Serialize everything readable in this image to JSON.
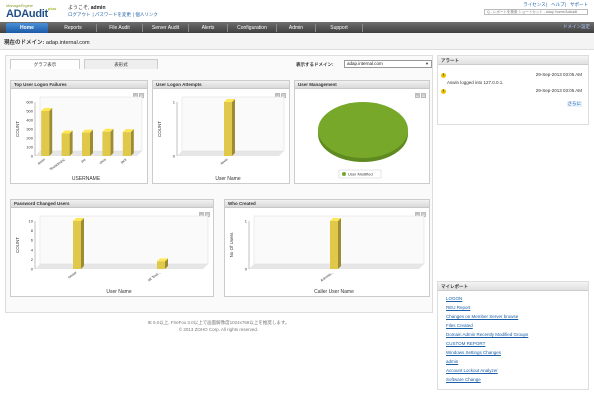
{
  "header": {
    "logo_small": "ManageEngine",
    "logo": "ADAudit",
    "logo_plus": "plus",
    "welcome_prefix": "ようこそ,",
    "user": "admin",
    "links": [
      "ログアウト",
      "パスワードを変更",
      "個人リンク"
    ],
    "top_links": [
      "ライセンス",
      "ヘルプ",
      "サポート"
    ],
    "search_placeholder": "Q - レポートを検索 ショートカット - adap /home/Adaudit"
  },
  "nav": {
    "tabs": [
      "Home",
      "Reports",
      "File Audit",
      "Server Audit",
      "Alerts",
      "Configuration",
      "Admin",
      "Support"
    ],
    "right_link": "ドメイン設定"
  },
  "domainbar": {
    "label": "現在のドメイン:",
    "value": "adap.internal.com"
  },
  "main": {
    "subtabs": [
      "グラフ表示",
      "表形式"
    ],
    "domain_select_label": "表示するドメイン:",
    "domain_select_value": "adap.internal.com"
  },
  "panels": {
    "logon_failures": {
      "title": "Top User Logon Failures",
      "chart_data": {
        "type": "bar",
        "categories": [
          "asvin",
          "TestadminC",
          "joe",
          "chris",
          "jack"
        ],
        "values": [
          500,
          250,
          260,
          270,
          265
        ],
        "ylim": [
          0,
          600
        ],
        "yticks": [
          "0",
          "100",
          "200",
          "300",
          "400",
          "500",
          "600"
        ],
        "xlabel": "USERNAME",
        "ylabel": "COUNT",
        "color": "#e0c84a"
      }
    },
    "logon_attempts": {
      "title": "User Logon Attempts",
      "chart_data": {
        "type": "bar",
        "categories": [
          "asvin"
        ],
        "values": [
          1
        ],
        "ylim": [
          0,
          1
        ],
        "yticks": [
          "0",
          "1"
        ],
        "xlabel": "User Name",
        "ylabel": "COUNT",
        "color": "#e0c84a"
      }
    },
    "user_management": {
      "title": "User Management",
      "chart_data": {
        "type": "pie",
        "slices": [
          {
            "label": "User Modified",
            "value": 100,
            "color": "#77a82a"
          }
        ]
      }
    },
    "password_changed": {
      "title": "Password Changed Users",
      "chart_data": {
        "type": "bar",
        "categories": [
          "nester",
          "alt Testi..."
        ],
        "values": [
          10,
          1.6
        ],
        "ylim": [
          0,
          10
        ],
        "yticks": [
          "0",
          "2",
          "4",
          "6",
          "8",
          "10"
        ],
        "xlabel": "User Name",
        "ylabel": "COUNT",
        "color": "#e0c84a"
      }
    },
    "who_created": {
      "title": "Who Created",
      "chart_data": {
        "type": "bar",
        "categories": [
          "Adminis..."
        ],
        "values": [
          1
        ],
        "ylim": [
          0,
          1
        ],
        "yticks": [
          "0",
          "1"
        ],
        "xlabel": "Caller User Name",
        "ylabel": "No Of Users",
        "color": "#e0c84a"
      }
    }
  },
  "alerts": {
    "title": "アラート",
    "items": [
      {
        "time": "29-Sep-2013 03:05 AM",
        "message": "Aswin logged into 127.0.0.1."
      },
      {
        "time": "29-Sep-2013 03:05 AM",
        "message": ""
      }
    ],
    "more": "さらに"
  },
  "my_reports": {
    "title": "マイレポート",
    "items": [
      "LOGON",
      "REU Report",
      "Changes on Member Server browse",
      "Files Created",
      "Domain Admin Recently Modified Groups",
      "CUSTOM REPORT",
      "Windows Settings Changes",
      "admin",
      "Account Lockout Analyzer",
      "Software Change"
    ]
  },
  "footer": {
    "line1": "IE 6.0以上, FireFox 3.0以上で画面解像度1024x768以上を推奨します。",
    "line2": "© 2013 ZOHO Corp. All rights reserved."
  }
}
